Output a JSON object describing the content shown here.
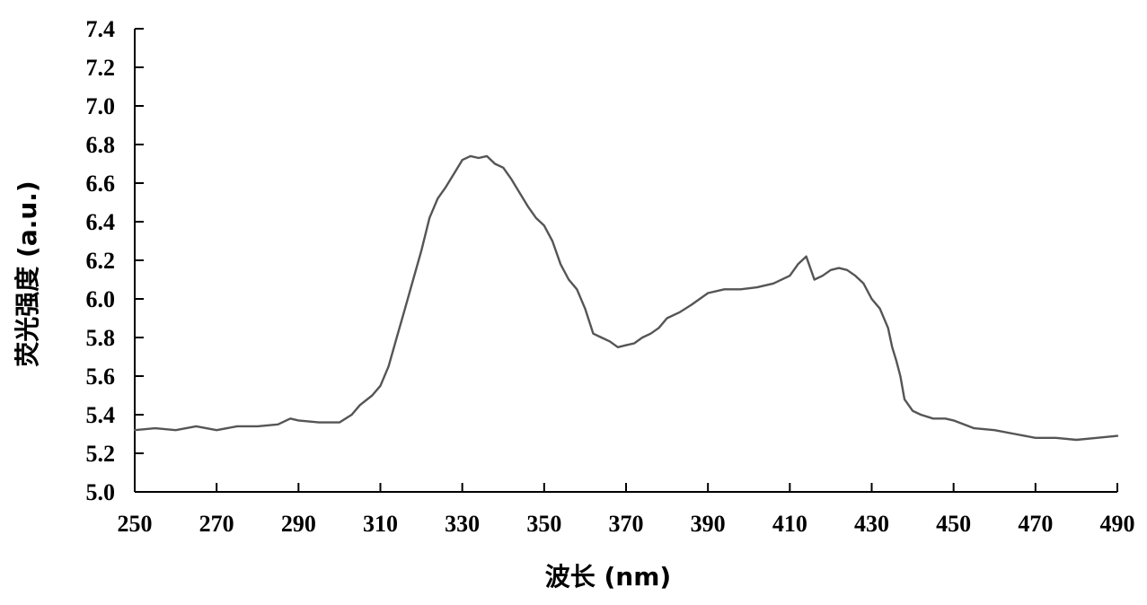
{
  "chart_data": {
    "type": "line",
    "xlabel": "波长 (nm)",
    "ylabel": "荧光强度 (a.u.)",
    "xlim": [
      250,
      490
    ],
    "ylim": [
      5.0,
      7.4
    ],
    "x_ticks": [
      250,
      270,
      290,
      310,
      330,
      350,
      370,
      390,
      410,
      430,
      450,
      470,
      490
    ],
    "y_ticks": [
      5.0,
      5.2,
      5.4,
      5.6,
      5.8,
      6.0,
      6.2,
      6.4,
      6.6,
      6.8,
      7.0,
      7.2,
      7.4
    ],
    "y_tick_labels": [
      "5.0",
      "5.2",
      "5.4",
      "5.6",
      "5.8",
      "6.0",
      "6.2",
      "6.4",
      "6.6",
      "6.8",
      "7.0",
      "7.2",
      "7.4"
    ],
    "grid": false,
    "line_color": "#555555",
    "series": [
      {
        "x": [
          250,
          255,
          260,
          265,
          270,
          275,
          280,
          285,
          288,
          290,
          295,
          300,
          303,
          305,
          308,
          310,
          312,
          314,
          316,
          318,
          320,
          322,
          324,
          326,
          328,
          330,
          332,
          334,
          336,
          338,
          340,
          342,
          344,
          346,
          348,
          350,
          352,
          354,
          356,
          358,
          360,
          362,
          364,
          366,
          368,
          370,
          372,
          374,
          376,
          378,
          380,
          383,
          386,
          390,
          394,
          398,
          402,
          406,
          410,
          412,
          414,
          416,
          418,
          420,
          422,
          424,
          426,
          428,
          430,
          432,
          434,
          435,
          436,
          437,
          438,
          440,
          442,
          445,
          448,
          450,
          455,
          460,
          465,
          470,
          475,
          480,
          485,
          490
        ],
        "y": [
          5.32,
          5.33,
          5.32,
          5.34,
          5.32,
          5.34,
          5.34,
          5.35,
          5.38,
          5.37,
          5.36,
          5.36,
          5.4,
          5.45,
          5.5,
          5.55,
          5.65,
          5.8,
          5.95,
          6.1,
          6.25,
          6.42,
          6.52,
          6.58,
          6.65,
          6.72,
          6.74,
          6.73,
          6.74,
          6.7,
          6.68,
          6.62,
          6.55,
          6.48,
          6.42,
          6.38,
          6.3,
          6.18,
          6.1,
          6.05,
          5.95,
          5.82,
          5.8,
          5.78,
          5.75,
          5.76,
          5.77,
          5.8,
          5.82,
          5.85,
          5.9,
          5.93,
          5.97,
          6.03,
          6.05,
          6.05,
          6.06,
          6.08,
          6.12,
          6.18,
          6.22,
          6.1,
          6.12,
          6.15,
          6.16,
          6.15,
          6.12,
          6.08,
          6.0,
          5.95,
          5.85,
          5.75,
          5.68,
          5.6,
          5.48,
          5.42,
          5.4,
          5.38,
          5.38,
          5.37,
          5.33,
          5.32,
          5.3,
          5.28,
          5.28,
          5.27,
          5.28,
          5.29
        ]
      }
    ]
  }
}
